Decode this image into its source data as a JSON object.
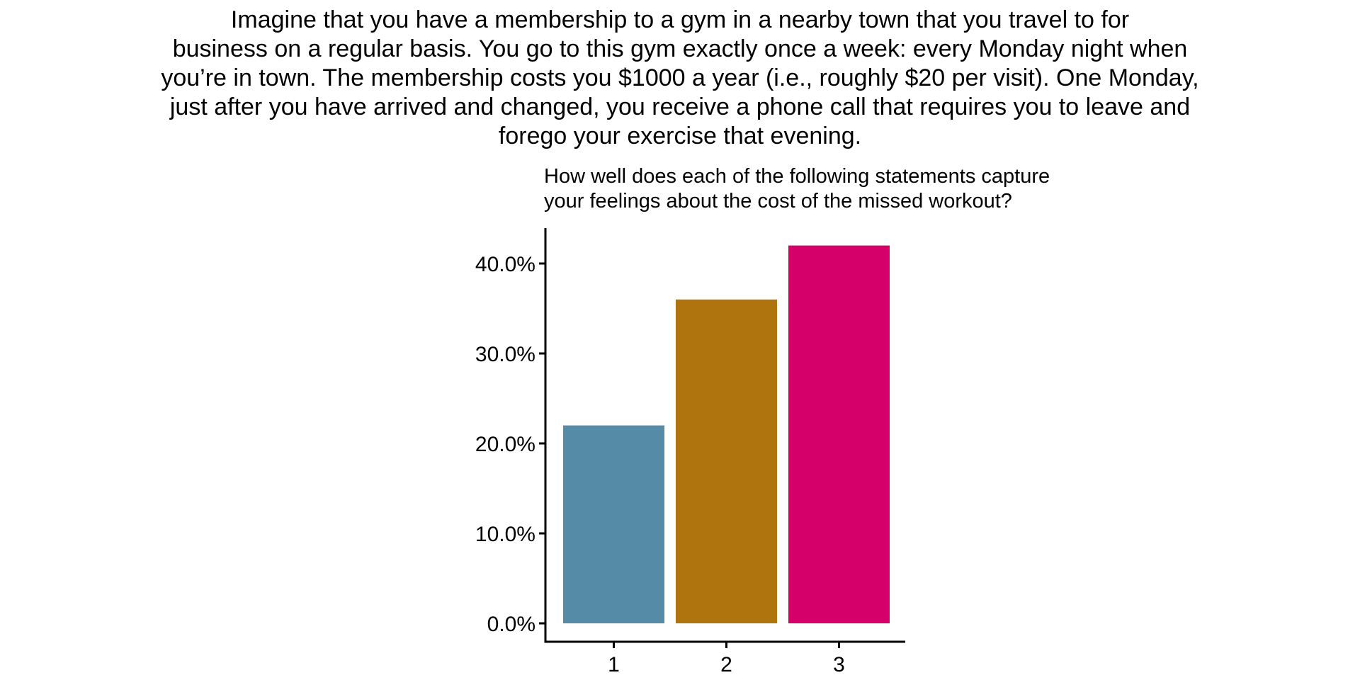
{
  "scenario_lines": [
    "Imagine that you have a membership to a gym in a nearby town that you travel to for",
    "business on a regular basis. You go to this gym exactly once a week: every Monday night when",
    "you’re in town. The membership costs you $1000 a year (i.e., roughly $20 per visit). One Monday,",
    "just after you have arrived and changed, you receive a phone call that requires you to leave and",
    "forego your exercise that evening."
  ],
  "question_lines": [
    "How well does each of the following statements capture",
    "your feelings about the cost of the missed workout?"
  ],
  "chart_data": {
    "type": "bar",
    "title": "How well does each of the following statements capture your feelings about the cost of the missed workout?",
    "categories": [
      "1",
      "2",
      "3"
    ],
    "values": [
      22.0,
      36.0,
      42.0
    ],
    "colors": [
      "#568ba8",
      "#b0740f",
      "#d5006a"
    ],
    "ylim": [
      0,
      44
    ],
    "yticks": [
      0,
      10,
      20,
      30,
      40
    ],
    "ytick_labels": [
      "0.0%",
      "10.0%",
      "20.0%",
      "30.0%",
      "40.0%"
    ],
    "xlabel": "",
    "ylabel": "",
    "grid": false,
    "legend": "none"
  }
}
